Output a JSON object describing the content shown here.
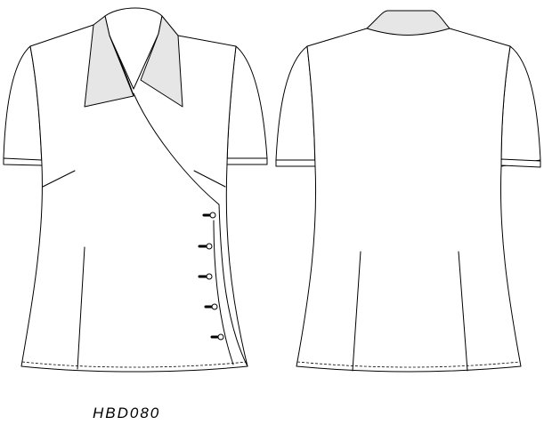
{
  "caption": {
    "style_code": "HBD080"
  },
  "colors": {
    "outline": "#000000",
    "fabric": "#ffffff",
    "collar_shade": "#e6e6e6"
  },
  "front_view": {
    "button_count": 5
  }
}
